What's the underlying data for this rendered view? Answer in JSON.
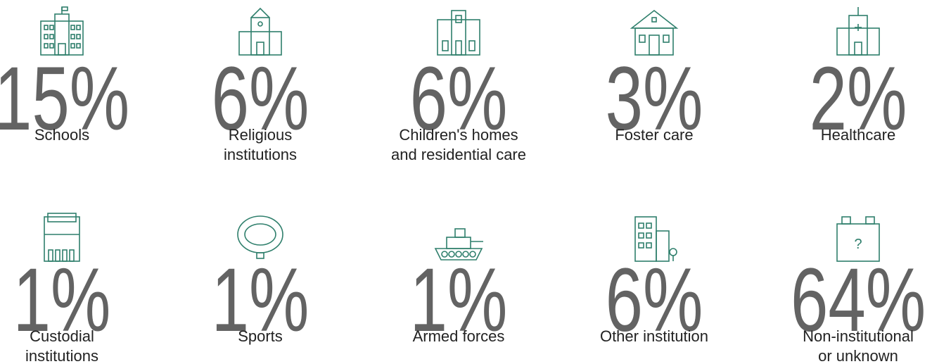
{
  "items": [
    {
      "value": "15%",
      "label": [
        "Schools"
      ]
    },
    {
      "value": "6%",
      "label": [
        "Religious",
        "institutions"
      ]
    },
    {
      "value": "6%",
      "label": [
        "Children's homes",
        "and residential care"
      ]
    },
    {
      "value": "3%",
      "label": [
        "Foster care"
      ]
    },
    {
      "value": "2%",
      "label": [
        "Healthcare"
      ]
    },
    {
      "value": "1%",
      "label": [
        "Custodial",
        "institutions"
      ]
    },
    {
      "value": "1%",
      "label": [
        "Sports"
      ]
    },
    {
      "value": "1%",
      "label": [
        "Armed forces"
      ]
    },
    {
      "value": "6%",
      "label": [
        "Other institution"
      ]
    },
    {
      "value": "64%",
      "label": [
        "Non-institutional",
        "or unknown"
      ]
    }
  ]
}
